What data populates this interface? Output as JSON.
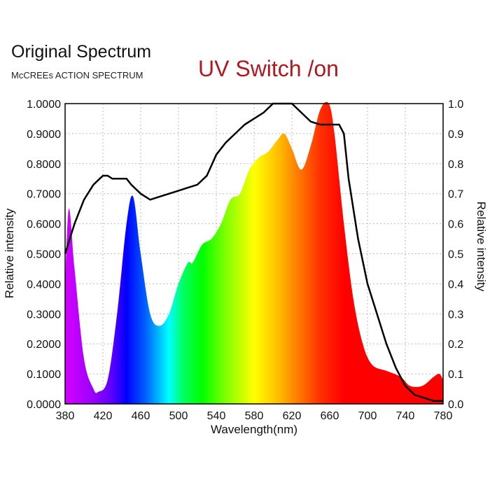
{
  "chart_data": {
    "type": "area",
    "title": "Original Spectrum",
    "subtitle": "McCREEs ACTION SPECTRUM",
    "annotation": "UV Switch /on",
    "xlabel": "Wavelength(nm)",
    "ylabel": "Relative intensity",
    "y2label": "Relative intensity",
    "xlim": [
      380,
      780
    ],
    "ylim": [
      0,
      1
    ],
    "y2lim": [
      0,
      1
    ],
    "grid": true,
    "xticks": [
      "380",
      "420",
      "460",
      "500",
      "540",
      "580",
      "620",
      "660",
      "700",
      "740",
      "780"
    ],
    "yticks": [
      "0.0000",
      "0.1000",
      "0.2000",
      "0.3000",
      "0.4000",
      "0.5000",
      "0.6000",
      "0.7000",
      "0.8000",
      "0.9000",
      "1.0000"
    ],
    "y2ticks": [
      "0.0",
      "0.1",
      "0.2",
      "0.3",
      "0.4",
      "0.5",
      "0.6",
      "0.7",
      "0.8",
      "0.9",
      "1.0"
    ],
    "series": [
      {
        "axis": "left",
        "style": "spectral-gradient-fill",
        "x": [
          380,
          384,
          390,
          400,
          410,
          415,
          425,
          435,
          445,
          452,
          460,
          470,
          480,
          490,
          500,
          510,
          515,
          525,
          535,
          545,
          555,
          565,
          575,
          585,
          595,
          605,
          612,
          620,
          630,
          640,
          650,
          659,
          665,
          675,
          685,
          695,
          705,
          720,
          735,
          745,
          758,
          770,
          776,
          780
        ],
        "y": [
          0.4,
          0.65,
          0.45,
          0.15,
          0.05,
          0.04,
          0.08,
          0.3,
          0.6,
          0.69,
          0.5,
          0.3,
          0.26,
          0.3,
          0.4,
          0.47,
          0.47,
          0.53,
          0.55,
          0.6,
          0.68,
          0.7,
          0.78,
          0.82,
          0.84,
          0.88,
          0.9,
          0.85,
          0.78,
          0.86,
          0.98,
          1.0,
          0.9,
          0.6,
          0.35,
          0.2,
          0.13,
          0.11,
          0.09,
          0.06,
          0.06,
          0.09,
          0.1,
          0.08
        ]
      },
      {
        "axis": "right",
        "style": "black-line",
        "color": "#000000",
        "x": [
          380,
          390,
          400,
          410,
          420,
          425,
          430,
          445,
          450,
          460,
          470,
          480,
          490,
          500,
          510,
          520,
          530,
          540,
          550,
          560,
          570,
          580,
          590,
          600,
          620,
          630,
          640,
          650,
          670,
          675,
          680,
          690,
          700,
          710,
          720,
          730,
          740,
          750,
          760,
          770,
          780
        ],
        "y": [
          0.5,
          0.6,
          0.68,
          0.73,
          0.76,
          0.76,
          0.75,
          0.75,
          0.73,
          0.7,
          0.68,
          0.69,
          0.7,
          0.71,
          0.72,
          0.73,
          0.76,
          0.83,
          0.87,
          0.9,
          0.93,
          0.95,
          0.97,
          1.0,
          1.0,
          0.97,
          0.94,
          0.93,
          0.93,
          0.9,
          0.75,
          0.55,
          0.4,
          0.3,
          0.2,
          0.12,
          0.06,
          0.03,
          0.02,
          0.01,
          0.01
        ]
      }
    ],
    "spectral_colors": [
      {
        "nm": 380,
        "color": "#d400ff"
      },
      {
        "nm": 410,
        "color": "#9a00ff"
      },
      {
        "nm": 430,
        "color": "#5a00ff"
      },
      {
        "nm": 445,
        "color": "#0000ff"
      },
      {
        "nm": 465,
        "color": "#0060ff"
      },
      {
        "nm": 490,
        "color": "#00ffff"
      },
      {
        "nm": 505,
        "color": "#00ff60"
      },
      {
        "nm": 525,
        "color": "#00ff00"
      },
      {
        "nm": 550,
        "color": "#80ff00"
      },
      {
        "nm": 580,
        "color": "#ffff00"
      },
      {
        "nm": 605,
        "color": "#ffc000"
      },
      {
        "nm": 625,
        "color": "#ff8000"
      },
      {
        "nm": 650,
        "color": "#ff3000"
      },
      {
        "nm": 675,
        "color": "#ff0000"
      },
      {
        "nm": 780,
        "color": "#ff0000"
      }
    ],
    "annotation_color": "#b01a1e"
  }
}
